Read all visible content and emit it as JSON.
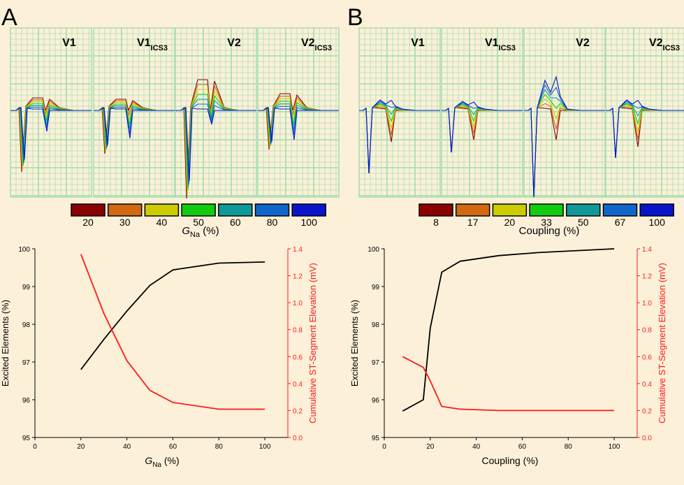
{
  "colors": {
    "background": "#fcf0d9",
    "grid": "#a8e0b0",
    "excited_line": "#000000",
    "st_line": "#ff1a1a",
    "palette": [
      "#8b0000",
      "#d2690e",
      "#cccc00",
      "#11cc11",
      "#119999",
      "#1166cc",
      "#0a14cc"
    ]
  },
  "panels": {
    "A": {
      "label": "A",
      "leads": [
        {
          "main": "V1",
          "sub": ""
        },
        {
          "main": "V1",
          "sub": "ICS3"
        },
        {
          "main": "V2",
          "sub": ""
        },
        {
          "main": "V2",
          "sub": "ICS3"
        }
      ],
      "legend_values": [
        "20",
        "30",
        "40",
        "50",
        "60",
        "80",
        "100"
      ],
      "legend_title_main": "G",
      "legend_title_sub": "Na",
      "legend_title_unit": " (%)"
    },
    "B": {
      "label": "B",
      "leads": [
        {
          "main": "V1",
          "sub": ""
        },
        {
          "main": "V1",
          "sub": "ICS3"
        },
        {
          "main": "V2",
          "sub": ""
        },
        {
          "main": "V2",
          "sub": "ICS3"
        }
      ],
      "legend_values": [
        "8",
        "17",
        "20",
        "33",
        "50",
        "67",
        "100"
      ],
      "legend_title_main": "Coupling (%)",
      "legend_title_sub": "",
      "legend_title_unit": ""
    }
  },
  "chart_data": [
    {
      "type": "line",
      "panel": "A",
      "xlabel_main": "G",
      "xlabel_sub": "Na",
      "xlabel_unit": " (%)",
      "ylabel_left": "Excited Elements (%)",
      "ylabel_right": "Cumulative ST-Segment Elevation (mV)",
      "xlim": [
        0,
        110
      ],
      "ylim_left": [
        95,
        100
      ],
      "ylim_right": [
        0,
        1.4
      ],
      "x_ticks": [
        "0",
        "20",
        "40",
        "60",
        "80",
        "100"
      ],
      "y_left_ticks": [
        "95",
        "96",
        "97",
        "98",
        "99",
        "100"
      ],
      "y_right_ticks": [
        "0.0",
        "0.2",
        "0.4",
        "0.6",
        "0.8",
        "1.0",
        "1.2",
        "1.4"
      ],
      "series": [
        {
          "axis": "left",
          "color": "#000000",
          "x": [
            20,
            30,
            40,
            50,
            60,
            80,
            100
          ],
          "y": [
            96.8,
            97.6,
            98.35,
            99.03,
            99.44,
            99.62,
            99.65
          ]
        },
        {
          "axis": "right",
          "color": "#ff1a1a",
          "x": [
            20,
            30,
            40,
            50,
            60,
            80,
            100
          ],
          "y": [
            1.36,
            0.92,
            0.57,
            0.35,
            0.26,
            0.21,
            0.21
          ]
        }
      ]
    },
    {
      "type": "line",
      "panel": "B",
      "xlabel_main": "Coupling (%)",
      "xlabel_sub": "",
      "xlabel_unit": "",
      "ylabel_left": "Excited Elements (%)",
      "ylabel_right": "Cumulative ST-Segment Elevation (mV)",
      "xlim": [
        0,
        110
      ],
      "ylim_left": [
        95,
        100
      ],
      "ylim_right": [
        0,
        1.4
      ],
      "x_ticks": [
        "0",
        "20",
        "40",
        "60",
        "80",
        "100"
      ],
      "y_left_ticks": [
        "95",
        "96",
        "97",
        "98",
        "99",
        "100"
      ],
      "y_right_ticks": [
        "0.0",
        "0.2",
        "0.4",
        "0.6",
        "0.8",
        "1.0",
        "1.2",
        "1.4"
      ],
      "series": [
        {
          "axis": "left",
          "color": "#000000",
          "x": [
            8,
            17,
            20,
            25,
            33,
            50,
            67,
            100
          ],
          "y": [
            95.7,
            96.0,
            97.9,
            99.38,
            99.67,
            99.82,
            99.9,
            100.0
          ]
        },
        {
          "axis": "right",
          "color": "#ff1a1a",
          "x": [
            8,
            17,
            20,
            25,
            33,
            50,
            67,
            100
          ],
          "y": [
            0.6,
            0.52,
            0.42,
            0.23,
            0.21,
            0.2,
            0.2,
            0.2
          ]
        }
      ]
    }
  ]
}
